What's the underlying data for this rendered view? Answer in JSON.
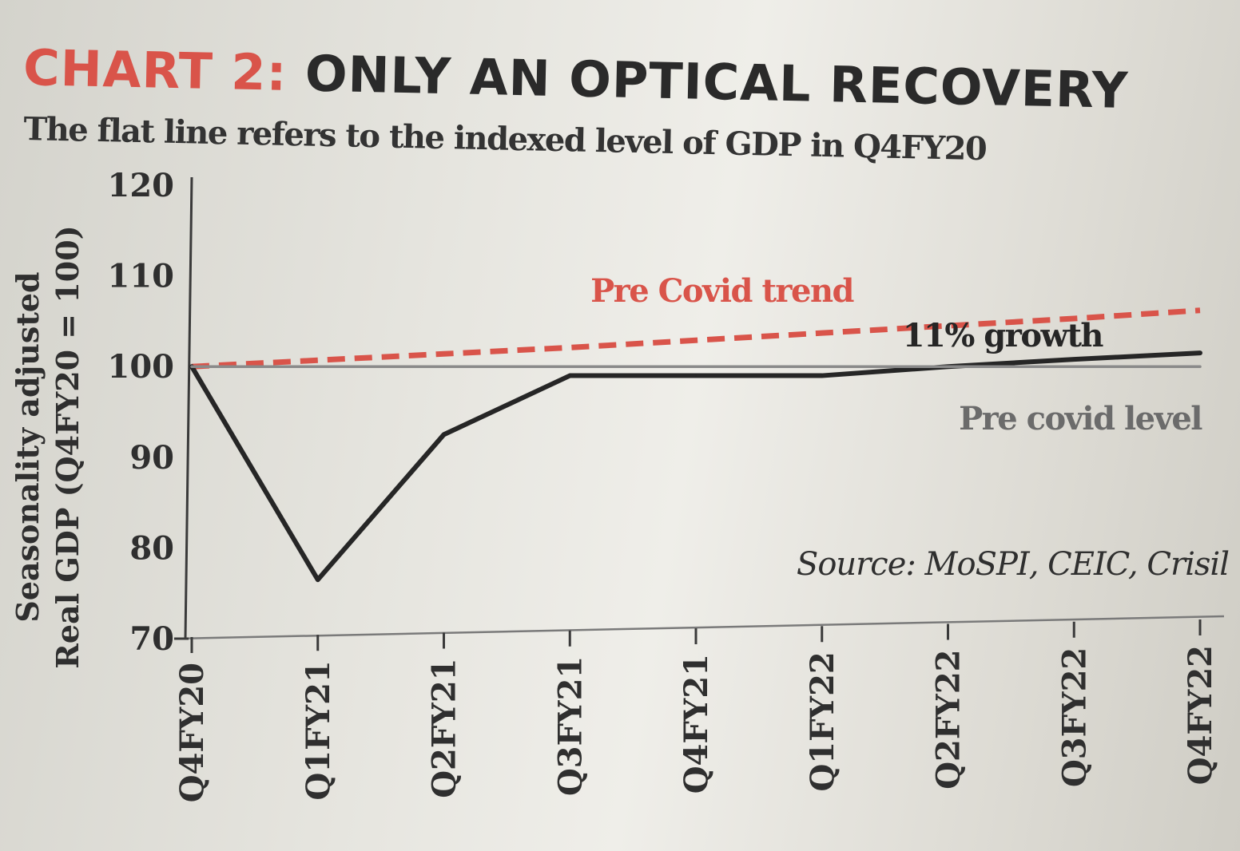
{
  "title_prefix": "CHART 2:",
  "title_main": "ONLY AN OPTICAL RECOVERY",
  "subtitle": "The flat line refers to the indexed level of GDP in Q4FY20",
  "source": "Source: MoSPI, CEIC, Crisil",
  "colors": {
    "accent": "#d9544a",
    "line": "#262626",
    "level": "#8a8a8a",
    "text": "#2f2f2f"
  },
  "chart_data": {
    "type": "line",
    "title": "ONLY AN OPTICAL RECOVERY",
    "subtitle": "The flat line refers to the indexed level of GDP in Q4FY20",
    "ylabel": [
      "Seasonality adjusted",
      "Real GDP (Q4FY20 = 100)"
    ],
    "ylim": [
      70,
      120
    ],
    "yticks": [
      70,
      80,
      90,
      100,
      110,
      120
    ],
    "ytick_labels": [
      "70",
      "80",
      "90",
      "100",
      "110",
      "120"
    ],
    "categories": [
      "Q4FY20",
      "Q1FY21",
      "Q2FY21",
      "Q3FY21",
      "Q4FY21",
      "Q1FY22",
      "Q2FY22",
      "Q3FY22",
      "Q4FY22"
    ],
    "grid": false,
    "series": [
      {
        "name": "Pre Covid trend",
        "style": "dashed",
        "color": "#d9544a",
        "values": [
          100,
          100.7,
          101.4,
          102.1,
          102.9,
          103.7,
          104.5,
          105.3,
          106.2
        ]
      },
      {
        "name": "11% growth",
        "style": "solid",
        "color": "#262626",
        "values": [
          100,
          76.5,
          92.5,
          99.0,
          99.0,
          99.0,
          100.0,
          100.8,
          101.5
        ]
      },
      {
        "name": "Pre covid level",
        "style": "solid",
        "color": "#8a8a8a",
        "values": [
          100,
          100,
          100,
          100,
          100,
          100,
          100,
          100,
          100
        ]
      }
    ]
  }
}
